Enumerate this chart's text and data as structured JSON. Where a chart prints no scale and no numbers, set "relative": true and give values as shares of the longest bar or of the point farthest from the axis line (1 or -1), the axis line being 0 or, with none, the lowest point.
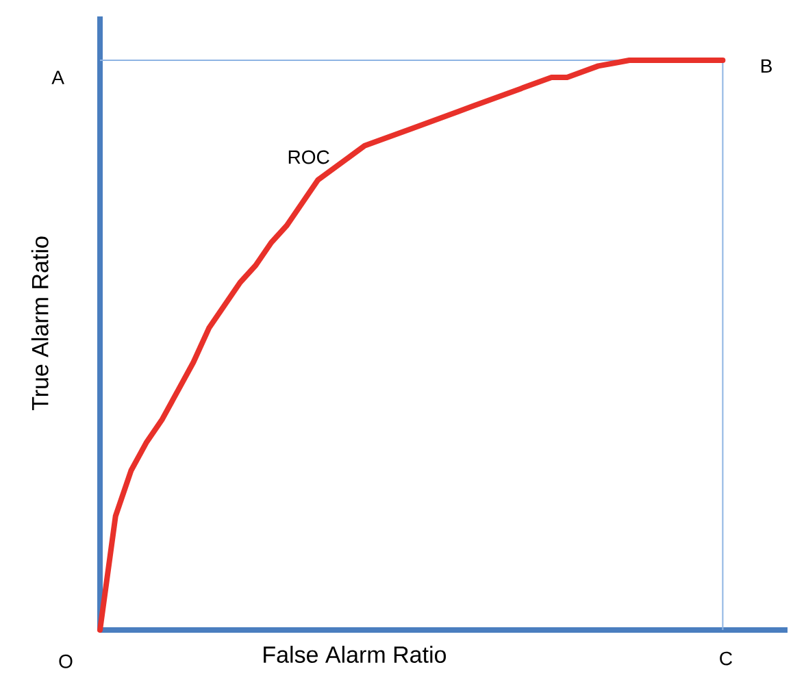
{
  "chart_data": {
    "type": "line",
    "relative": true,
    "xlabel": "False Alarm Ratio",
    "ylabel": "True Alarm Ratio",
    "color": "#e8312a",
    "categories": [
      null,
      null,
      null,
      null,
      null,
      null,
      null,
      null,
      null,
      null,
      null,
      null,
      null,
      null,
      null,
      null,
      null,
      null,
      null,
      null,
      null,
      null,
      null,
      null,
      null,
      null,
      null,
      null,
      null,
      null,
      null,
      null,
      null,
      null,
      null,
      null,
      null,
      null,
      null,
      null,
      null
    ],
    "values": [
      0,
      0.2,
      0.28,
      0.33,
      0.37,
      0.42,
      0.47,
      0.53,
      0.57,
      0.61,
      0.64,
      0.68,
      0.71,
      0.75,
      0.79,
      0.81,
      0.83,
      0.85,
      0.86,
      0.87,
      0.88,
      0.89,
      0.9,
      0.91,
      0.92,
      0.93,
      0.94,
      0.95,
      0.96,
      0.97,
      0.97,
      0.98,
      0.99,
      0.995,
      1,
      1,
      1,
      1,
      1,
      1,
      1
    ],
    "ref_lines": [
      {
        "axis": "y",
        "value": 1,
        "color": "#8eb4e3"
      }
    ],
    "annotations": [
      "ROC",
      "A",
      "B",
      "C",
      "O"
    ]
  }
}
